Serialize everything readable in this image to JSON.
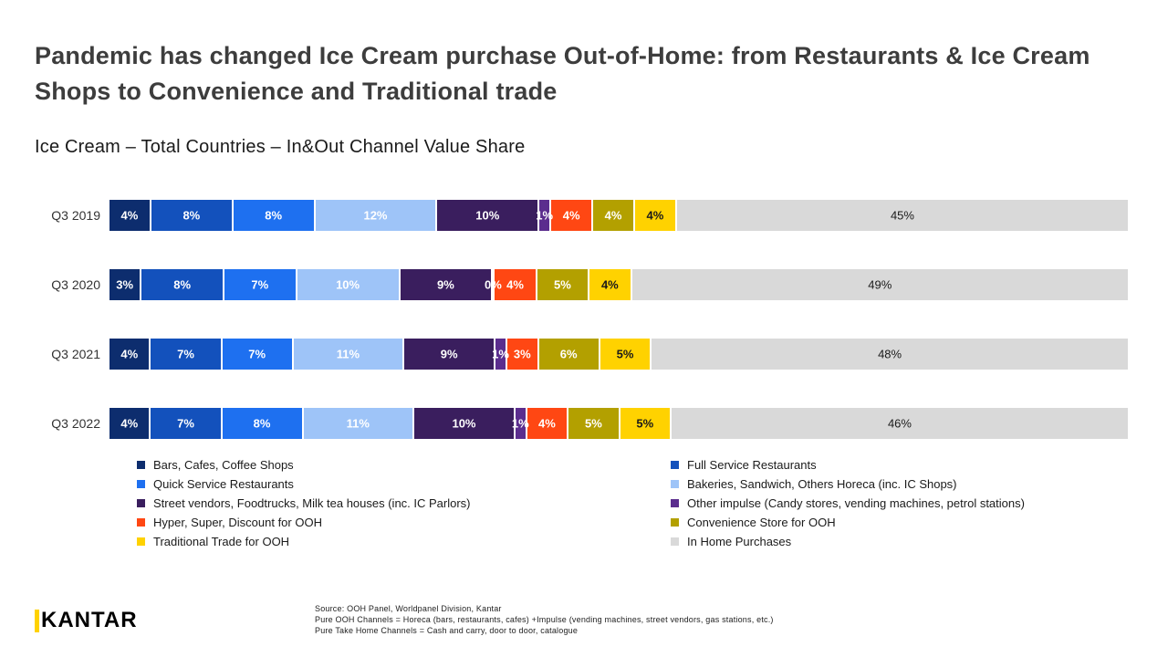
{
  "title": "Pandemic has changed Ice Cream purchase Out-of-Home: from Restaurants & Ice Cream Shops to Convenience and Traditional trade",
  "subtitle": "Ice Cream – Total Countries – In&Out Channel Value Share",
  "chart_data": {
    "type": "bar",
    "orientation": "horizontal-stacked",
    "value_suffix": "%",
    "categories": [
      "Q3 2019",
      "Q3 2020",
      "Q3 2021",
      "Q3 2022"
    ],
    "series": [
      {
        "name": "Bars, Cafes, Coffee Shops",
        "color": "#0d2d6e",
        "label_color": "#ffffff",
        "label_weight": 700,
        "values": [
          4,
          3,
          4,
          4
        ]
      },
      {
        "name": "Full Service Restaurants",
        "color": "#1351bc",
        "label_color": "#ffffff",
        "label_weight": 700,
        "values": [
          8,
          8,
          7,
          7
        ]
      },
      {
        "name": "Quick Service Restaurants",
        "color": "#1e70f0",
        "label_color": "#ffffff",
        "label_weight": 700,
        "values": [
          8,
          7,
          7,
          8
        ]
      },
      {
        "name": "Bakeries, Sandwich, Others Horeca (inc. IC Shops)",
        "color": "#9ec4f8",
        "label_color": "#ffffff",
        "label_weight": 700,
        "values": [
          12,
          10,
          11,
          11
        ]
      },
      {
        "name": "Street vendors, Foodtrucks, Milk tea houses (inc. IC Parlors)",
        "color": "#3a1e5e",
        "label_color": "#ffffff",
        "label_weight": 700,
        "values": [
          10,
          9,
          9,
          10
        ]
      },
      {
        "name": "Other impulse (Candy stores, vending machines, petrol stations)",
        "color": "#5b2d8e",
        "label_color": "#ffffff",
        "label_weight": 700,
        "values": [
          1,
          0,
          1,
          1
        ]
      },
      {
        "name": "Hyper, Super, Discount for OOH",
        "color": "#ff4713",
        "label_color": "#ffffff",
        "label_weight": 700,
        "values": [
          4,
          4,
          3,
          4
        ]
      },
      {
        "name": "Convenience Store for OOH",
        "color": "#b3a000",
        "label_color": "#ffffff",
        "label_weight": 700,
        "values": [
          4,
          5,
          6,
          5
        ]
      },
      {
        "name": "Traditional Trade for OOH",
        "color": "#ffd200",
        "label_color": "#1a1a1a",
        "label_weight": 700,
        "values": [
          4,
          4,
          5,
          5
        ]
      },
      {
        "name": "In Home Purchases",
        "color": "#d9d9d9",
        "label_color": "#1a1a1a",
        "label_weight": 400,
        "values": [
          45,
          49,
          48,
          46
        ]
      }
    ],
    "legend_position": "bottom",
    "grid": false
  },
  "legend_columns": [
    [
      0,
      2,
      4,
      6,
      8
    ],
    [
      1,
      3,
      5,
      7,
      9
    ]
  ],
  "footer": {
    "logo": "KANTAR",
    "logo_accent_color": "#ffd200",
    "source_lines": [
      "Source: OOH Panel, Worldpanel Division, Kantar",
      "Pure OOH Channels = Horeca (bars, restaurants, cafes) +Impulse (vending machines, street vendors, gas stations, etc.)",
      "Pure Take Home Channels = Cash and carry, door to door, catalogue"
    ]
  }
}
